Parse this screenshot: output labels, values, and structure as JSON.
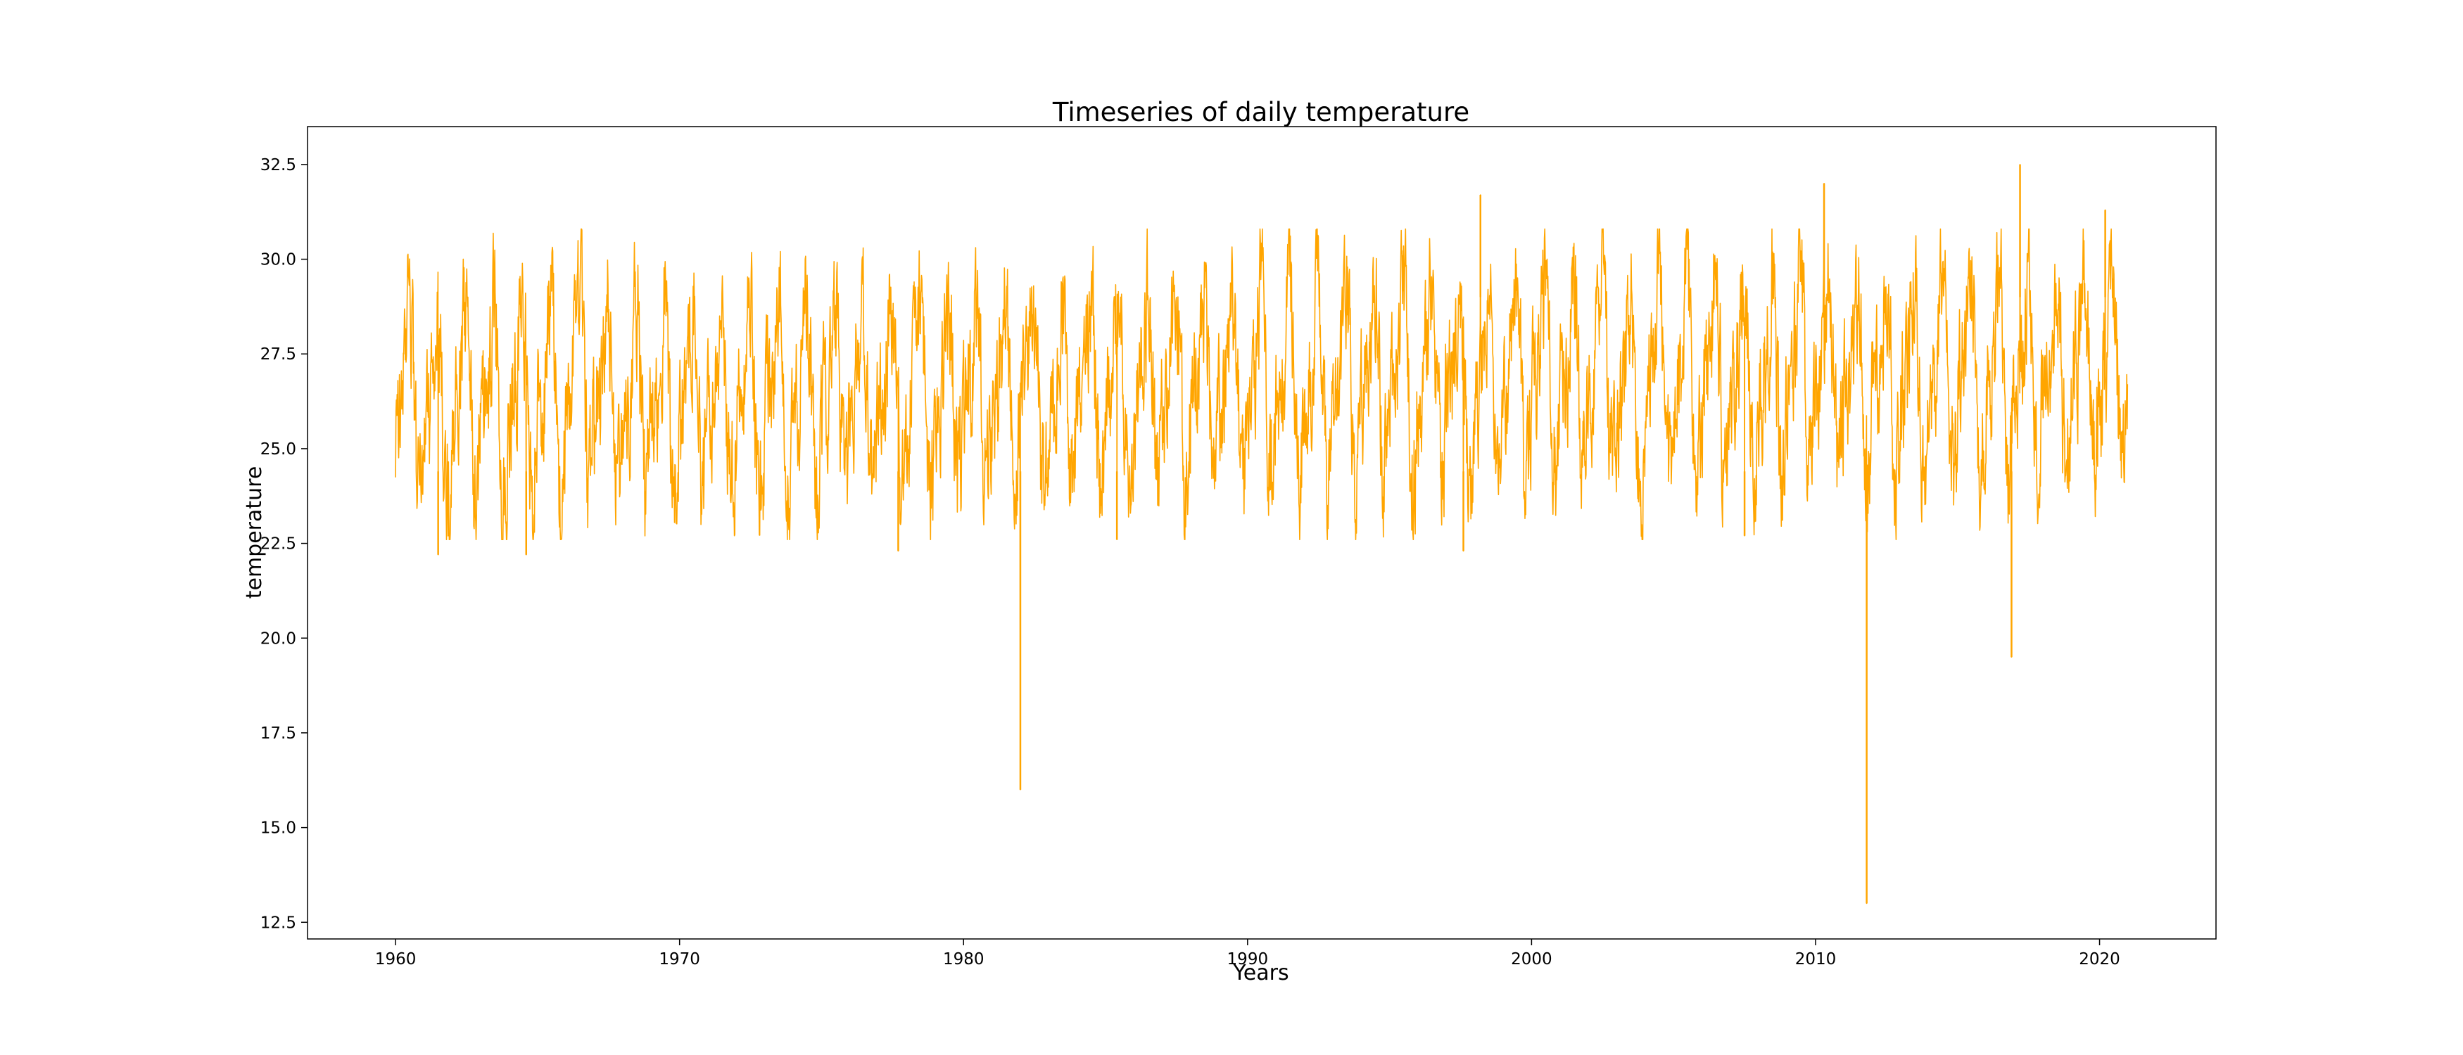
{
  "chart_data": {
    "type": "line",
    "title": "Timeseries of daily temperature",
    "xlabel": "Years",
    "ylabel": "temperature",
    "xlim": [
      1956.9,
      2024.1
    ],
    "ylim": [
      12.06,
      33.5
    ],
    "xticks": [
      1960,
      1970,
      1980,
      1990,
      2000,
      2010,
      2020
    ],
    "xtick_labels": [
      "1960",
      "1970",
      "1980",
      "1990",
      "2000",
      "2010",
      "2020"
    ],
    "yticks": [
      12.5,
      15.0,
      17.5,
      20.0,
      22.5,
      25.0,
      27.5,
      30.0,
      32.5
    ],
    "ytick_labels": [
      "12.5",
      "15.0",
      "17.5",
      "20.0",
      "22.5",
      "25.0",
      "27.5",
      "30.0",
      "32.5"
    ],
    "grid": false,
    "legend": "none",
    "series": [
      {
        "name": "temperature",
        "color": "#FFA500",
        "x_range": [
          1960.0,
          2021.0
        ],
        "sampling": "daily",
        "mean_level": 26.6,
        "typical_min": 23.2,
        "typical_max": 30.2,
        "series_min": 13.0,
        "series_max": 32.5,
        "notable_points": [
          {
            "x": 1961.5,
            "y": 22.2
          },
          {
            "x": 1964.6,
            "y": 22.2
          },
          {
            "x": 1977.7,
            "y": 22.3
          },
          {
            "x": 1982.0,
            "y": 16.0
          },
          {
            "x": 1985.4,
            "y": 22.6
          },
          {
            "x": 1997.6,
            "y": 22.3
          },
          {
            "x": 1998.2,
            "y": 31.7
          },
          {
            "x": 2007.5,
            "y": 22.7
          },
          {
            "x": 2010.3,
            "y": 32.0
          },
          {
            "x": 2011.8,
            "y": 13.0
          },
          {
            "x": 2016.9,
            "y": 19.5
          },
          {
            "x": 2017.2,
            "y": 32.5
          },
          {
            "x": 2020.2,
            "y": 31.3
          }
        ]
      }
    ]
  }
}
